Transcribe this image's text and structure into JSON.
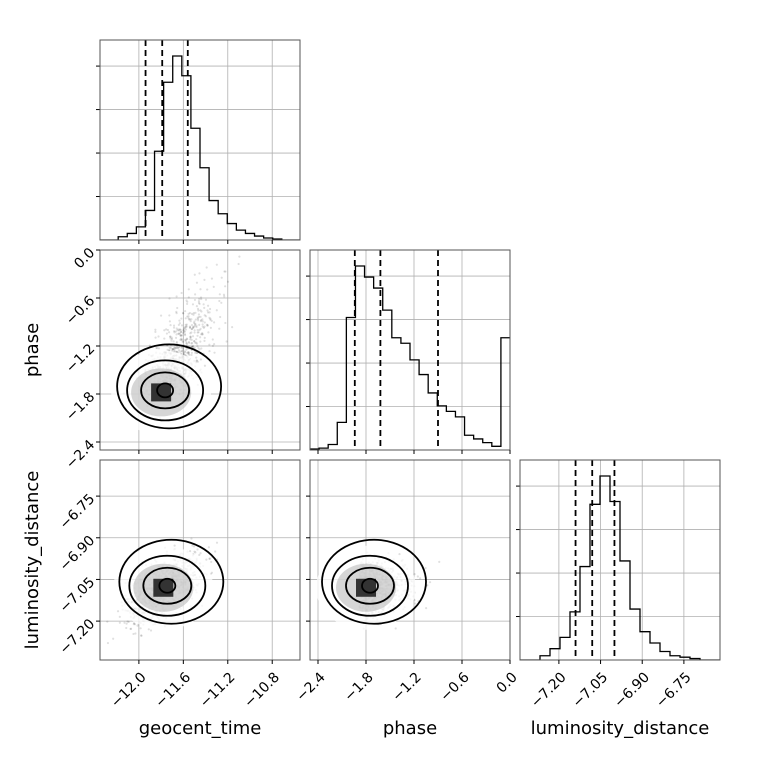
{
  "chart_data": {
    "type": "corner",
    "parameters": [
      "geocent_time",
      "phase",
      "luminosity_distance"
    ],
    "axis_labels": {
      "x": [
        "geocent_time",
        "phase",
        "luminosity_distance"
      ],
      "y": [
        "phase",
        "luminosity_distance"
      ]
    },
    "ranges": {
      "geocent_time": [
        -12.35,
        -10.55
      ],
      "phase": [
        -2.5,
        0.0
      ],
      "luminosity_distance": [
        -7.34,
        -6.62
      ]
    },
    "ticks": {
      "geocent_time": [
        -12.0,
        -11.6,
        -11.2,
        -10.8
      ],
      "phase": [
        -2.4,
        -1.8,
        -1.2,
        -0.6,
        0.0
      ],
      "luminosity_distance": [
        -7.2,
        -7.05,
        -6.9,
        -6.75
      ]
    },
    "tick_labels": {
      "geocent_time": [
        "−12.0",
        "−11.6",
        "−11.2",
        "−10.8"
      ],
      "phase": [
        "−2.4",
        "−1.8",
        "−1.2",
        "−0.6",
        "0.0"
      ],
      "luminosity_distance": [
        "−7.20",
        "−7.05",
        "−6.90",
        "−6.75"
      ]
    },
    "quantiles": {
      "geocent_time": [
        -11.94,
        -11.79,
        -11.56
      ],
      "phase": [
        -1.94,
        -1.62,
        -0.9
      ],
      "luminosity_distance": [
        -7.14,
        -7.08,
        -7.0
      ]
    },
    "histograms": {
      "geocent_time": [
        0,
        0,
        1,
        2,
        4,
        9,
        27,
        48,
        56,
        50,
        34,
        22,
        12,
        8,
        5,
        3,
        2,
        1.2,
        0.6,
        0.3,
        0,
        0
      ],
      "phase": [
        0.5,
        1,
        3,
        15,
        72,
        100,
        94,
        88,
        76,
        61,
        58,
        49,
        41,
        31,
        24,
        21,
        18,
        8,
        6,
        4,
        2,
        61
      ],
      "luminosity_distance": [
        0,
        0,
        1.5,
        4,
        8,
        17,
        33,
        55,
        65,
        56,
        35,
        18,
        10,
        6,
        3,
        1.5,
        1,
        0.5,
        0,
        0
      ]
    },
    "grid": true,
    "contour_centers": {
      "geocent_time_vs_phase": [
        -11.8,
        -1.78
      ],
      "geocent_time_vs_luminosity_distance": [
        -11.78,
        -7.08
      ],
      "phase_vs_luminosity_distance": [
        -1.8,
        -7.08
      ]
    }
  }
}
